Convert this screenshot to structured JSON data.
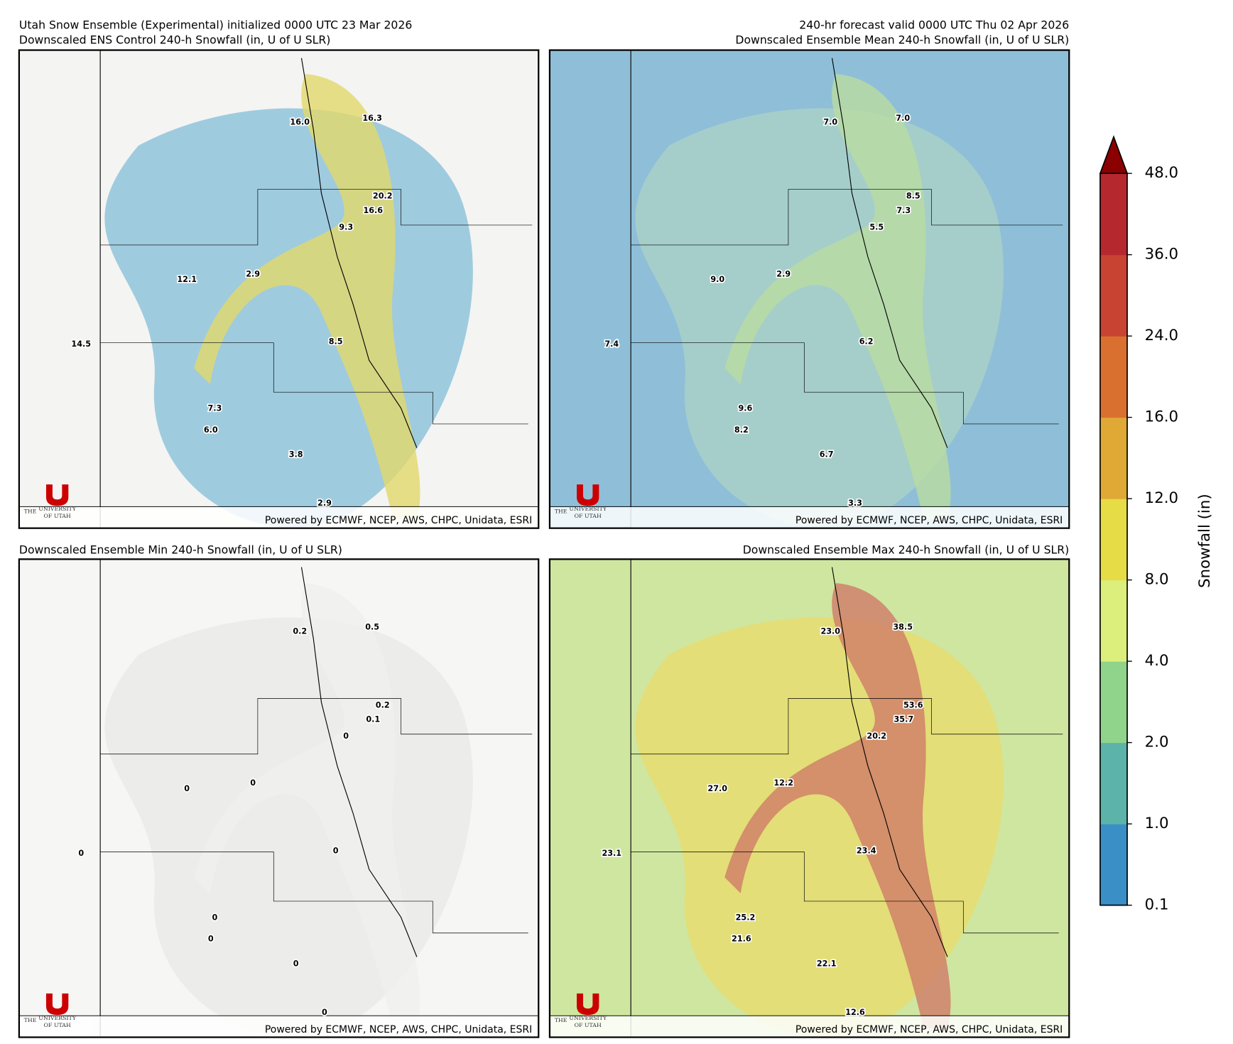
{
  "header": {
    "left": "Utah Snow Ensemble (Experimental) initialized 0000 UTC 23 Mar 2026",
    "right": "240-hr forecast valid 0000 UTC Thu 02 Apr 2026"
  },
  "panels": [
    {
      "title": "Downscaled ENS Control 240-h Snowfall (in, U of U SLR)",
      "labels": [
        "16.0",
        "16.3",
        "20.2",
        "16.6",
        "9.3",
        "12.1",
        "2.9",
        "14.5",
        "8.5",
        "7.3",
        "6.0",
        "3.8",
        "2.9"
      ],
      "credit": "Powered by ECMWF, NCEP, AWS, CHPC, Unidata, ESRI"
    },
    {
      "title": "Downscaled Ensemble Mean 240-h Snowfall (in, U of U SLR)",
      "labels": [
        "7.0",
        "7.0",
        "8.5",
        "7.3",
        "5.5",
        "9.0",
        "2.9",
        "7.4",
        "6.2",
        "9.6",
        "8.2",
        "6.7",
        "3.3"
      ],
      "credit": "Powered by ECMWF, NCEP, AWS, CHPC, Unidata, ESRI"
    },
    {
      "title": "Downscaled Ensemble Min 240-h Snowfall (in, U of U SLR)",
      "labels": [
        "0.2",
        "0.5",
        "0.2",
        "0.1",
        "0",
        "0",
        "0",
        "0",
        "0",
        "0",
        "0",
        "0",
        "0"
      ],
      "credit": "Powered by ECMWF, NCEP, AWS, CHPC, Unidata, ESRI"
    },
    {
      "title": "Downscaled Ensemble Max 240-h Snowfall (in, U of U SLR)",
      "labels": [
        "23.0",
        "38.5",
        "53.6",
        "35.7",
        "20.2",
        "27.0",
        "12.2",
        "23.1",
        "23.4",
        "25.2",
        "21.6",
        "22.1",
        "12.6"
      ],
      "credit": "Powered by ECMWF, NCEP, AWS, CHPC, Unidata, ESRI"
    }
  ],
  "logo": {
    "top": "THE",
    "middle": "UNIVERSITY",
    "bottom": "OF UTAH"
  },
  "colorbar": {
    "label": "Snowfall (in)",
    "levels": [
      "0.1",
      "1.0",
      "2.0",
      "4.0",
      "8.0",
      "12.0",
      "16.0",
      "24.0",
      "36.0",
      "48.0"
    ],
    "colors": [
      "#3a8fc6",
      "#5bb3aa",
      "#8fd48a",
      "#dcef7c",
      "#e6dc45",
      "#e0a834",
      "#d9702f",
      "#c94332",
      "#b5282e"
    ],
    "extend_color": "#8b0000"
  }
}
